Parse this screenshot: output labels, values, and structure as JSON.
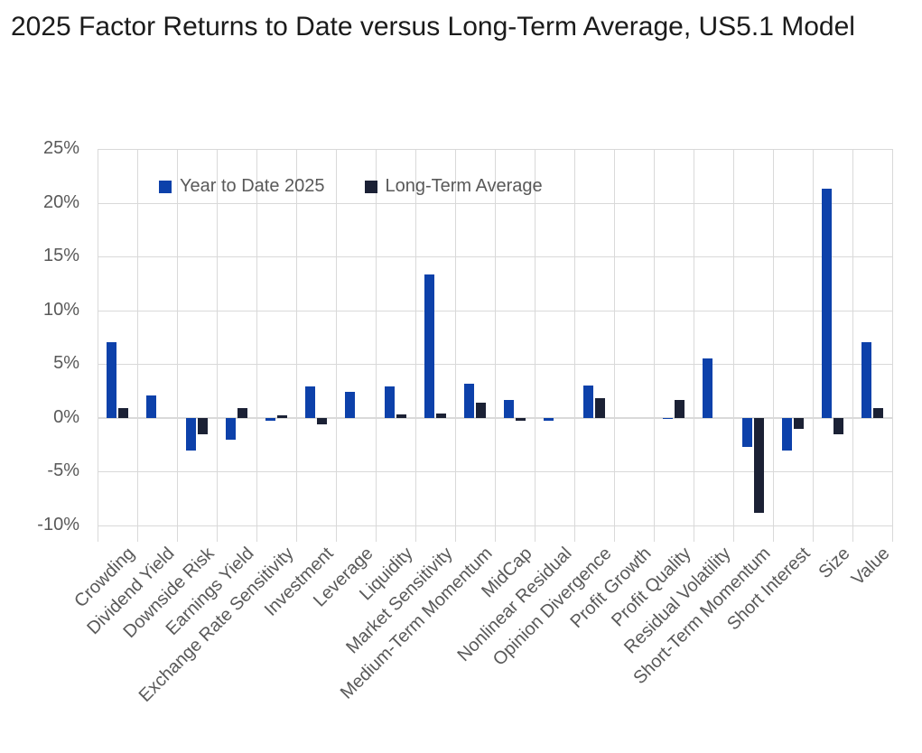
{
  "chart_data": {
    "type": "bar",
    "title": "2025 Factor Returns to Date versus Long-Term Average, US5.1 Model",
    "categories": [
      "Crowding",
      "Dividend Yield",
      "Downside Risk",
      "Earnings Yield",
      "Exchange Rate Sensitivity",
      "Investment",
      "Leverage",
      "Liquidity",
      "Market Sensitivity",
      "Medium-Term Momentum",
      "MidCap",
      "Nonlinear Residual",
      "Opinion Divergence",
      "Profit Growth",
      "Profit Quality",
      "Residual Volatility",
      "Short-Term Momentum",
      "Short Interest",
      "Size",
      "Value"
    ],
    "series": [
      {
        "name": "Year to Date 2025",
        "color": "#0d41aa",
        "values": [
          7.0,
          2.1,
          -3.0,
          -2.0,
          -0.3,
          2.9,
          2.4,
          2.9,
          13.3,
          3.2,
          1.7,
          -0.3,
          3.0,
          0.0,
          -0.1,
          5.5,
          -2.7,
          -3.0,
          21.3,
          7.0
        ]
      },
      {
        "name": "Long-Term Average",
        "color": "#1b2135",
        "values": [
          0.9,
          0.0,
          -1.5,
          0.9,
          0.2,
          -0.6,
          0.0,
          0.3,
          0.4,
          1.4,
          -0.3,
          0.0,
          1.8,
          0.0,
          1.7,
          0.0,
          -8.8,
          -1.0,
          -1.5,
          0.9
        ]
      }
    ],
    "ylim": [
      -10,
      25
    ],
    "ytick_step": 5,
    "ytick_labels": [
      "25%",
      "20%",
      "15%",
      "10%",
      "5%",
      "0%",
      "-5%",
      "-10%"
    ],
    "xlabel": "",
    "ylabel": "",
    "grid": true,
    "legend_position": "top-inside-left"
  },
  "colors": {
    "gridline": "#d9d9d9",
    "axis_text": "#595959",
    "title_text": "#1b1b1b",
    "background": "#ffffff"
  }
}
